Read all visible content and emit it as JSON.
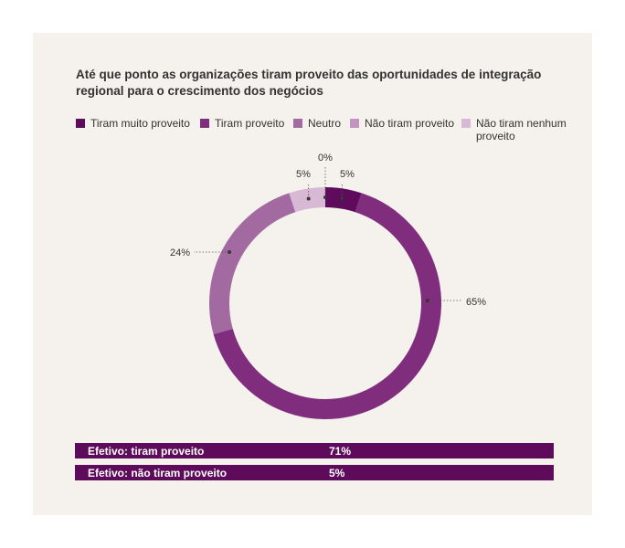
{
  "title": "Até que ponto as organizações tiram proveito das oportunidades de integração regional para o crescimento dos negócios",
  "chart_data": {
    "type": "pie",
    "variant": "donut",
    "categories": [
      "Tiram muito proveito",
      "Tiram proveito",
      "Neutro",
      "Não tiram proveito",
      "Não tiram nenhum proveito"
    ],
    "values": [
      5,
      65,
      24,
      0,
      5
    ],
    "labels": [
      "5%",
      "65%",
      "24%",
      "0%",
      "5%"
    ],
    "colors": [
      "#5e0b5b",
      "#7f2d7c",
      "#a26aa0",
      "#c393c1",
      "#d7b8d5"
    ],
    "legend": "top"
  },
  "legend": {
    "items": [
      {
        "label": "Tiram muito proveito",
        "color": "#5e0b5b"
      },
      {
        "label": "Tiram proveito",
        "color": "#7f2d7c"
      },
      {
        "label": "Neutro",
        "color": "#a26aa0"
      },
      {
        "label": "Não tiram proveito",
        "color": "#c393c1"
      },
      {
        "label": "Não tiram nenhum proveito",
        "color": "#d7b8d5"
      }
    ]
  },
  "summary": [
    {
      "label": "Efetivo: tiram proveito",
      "value": "71%"
    },
    {
      "label": "Efetivo: não tiram proveito",
      "value": "5%"
    }
  ]
}
